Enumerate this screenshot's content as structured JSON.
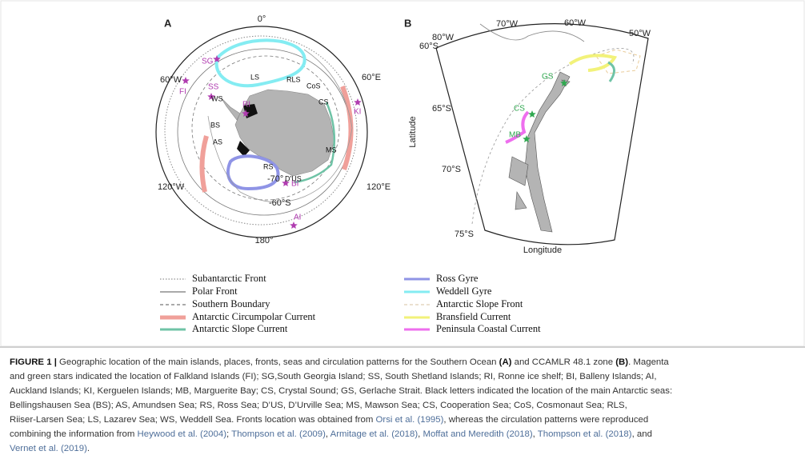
{
  "figure": {
    "panel_a": {
      "label": "A",
      "longitudes": [
        "0°",
        "60°E",
        "120°E",
        "180°",
        "120°W",
        "60°W"
      ],
      "latitudes": [
        "-70°",
        "-60°S"
      ],
      "sites": [
        "SG",
        "FI",
        "SS",
        "RI",
        "KI",
        "BI",
        "AI"
      ],
      "seas": [
        "WS",
        "LS",
        "RLS",
        "CoS",
        "CS",
        "BS",
        "AS",
        "MS",
        "RS",
        "D'US"
      ]
    },
    "panel_b": {
      "label": "B",
      "longitudes": [
        "80°W",
        "70°W",
        "60°W",
        "50°W"
      ],
      "latitudes": [
        "60°S",
        "65°S",
        "70°S",
        "75°S"
      ],
      "x_label": "Longitude",
      "y_label": "Latitude",
      "sites": [
        "GS",
        "CS",
        "MB"
      ]
    },
    "legend": {
      "left": [
        "Subantarctic Front",
        "Polar Front",
        "Southern Boundary",
        "Antarctic Circumpolar Current",
        "Antarctic Slope Current"
      ],
      "right": [
        "Ross Gyre",
        "Weddell Gyre",
        "Antarctic Slope Front",
        "Bransfield Current",
        "Peninsula Coastal Current"
      ]
    },
    "caption": {
      "lines": [
        [
          "FIGURE 1 |",
          " Geographic location of the main islands, places, fronts, seas and circulation patterns for the Southern Ocean ",
          "(A)",
          " and CCAMLR 48.1 zone ",
          "(B)",
          ". Magenta"
        ],
        [
          "and green stars indicated the location of Falkland Islands (FI); SG,South Georgia Island; SS, South Shetland Islands; RI, Ronne ice shelf; BI, Balleny Islands; AI,"
        ],
        [
          "Auckland Islands; KI, Kerguelen Islands; MB, Marguerite Bay; CS, Crystal Sound; GS, Gerlache Strait. Black letters indicated the location of the main Antarctic seas:"
        ],
        [
          "Bellingshausen Sea (BS); AS, Amundsen Sea; RS, Ross Sea; D’US, D’Urville Sea; MS, Mawson Sea; CS, Cooperation Sea; CoS, Cosmonaut Sea; RLS,"
        ],
        [
          "Riiser-Larsen Sea; LS, Lazarev Sea; WS, Weddell Sea. Fronts location was obtained from ",
          "Orsi et al. (1995)",
          ", whereas the circulation patterns were reproduced"
        ],
        [
          "combining the information from ",
          "Heywood et al. (2004)",
          "; ",
          "Thompson et al. (2009)",
          ", ",
          "Armitage et al. (2018)",
          ", ",
          "Moffat and Meredith (2018)",
          ", ",
          "Thompson et al. (2018)",
          ", and"
        ],
        [
          "Vernet et al. (2019)",
          "."
        ]
      ]
    }
  }
}
